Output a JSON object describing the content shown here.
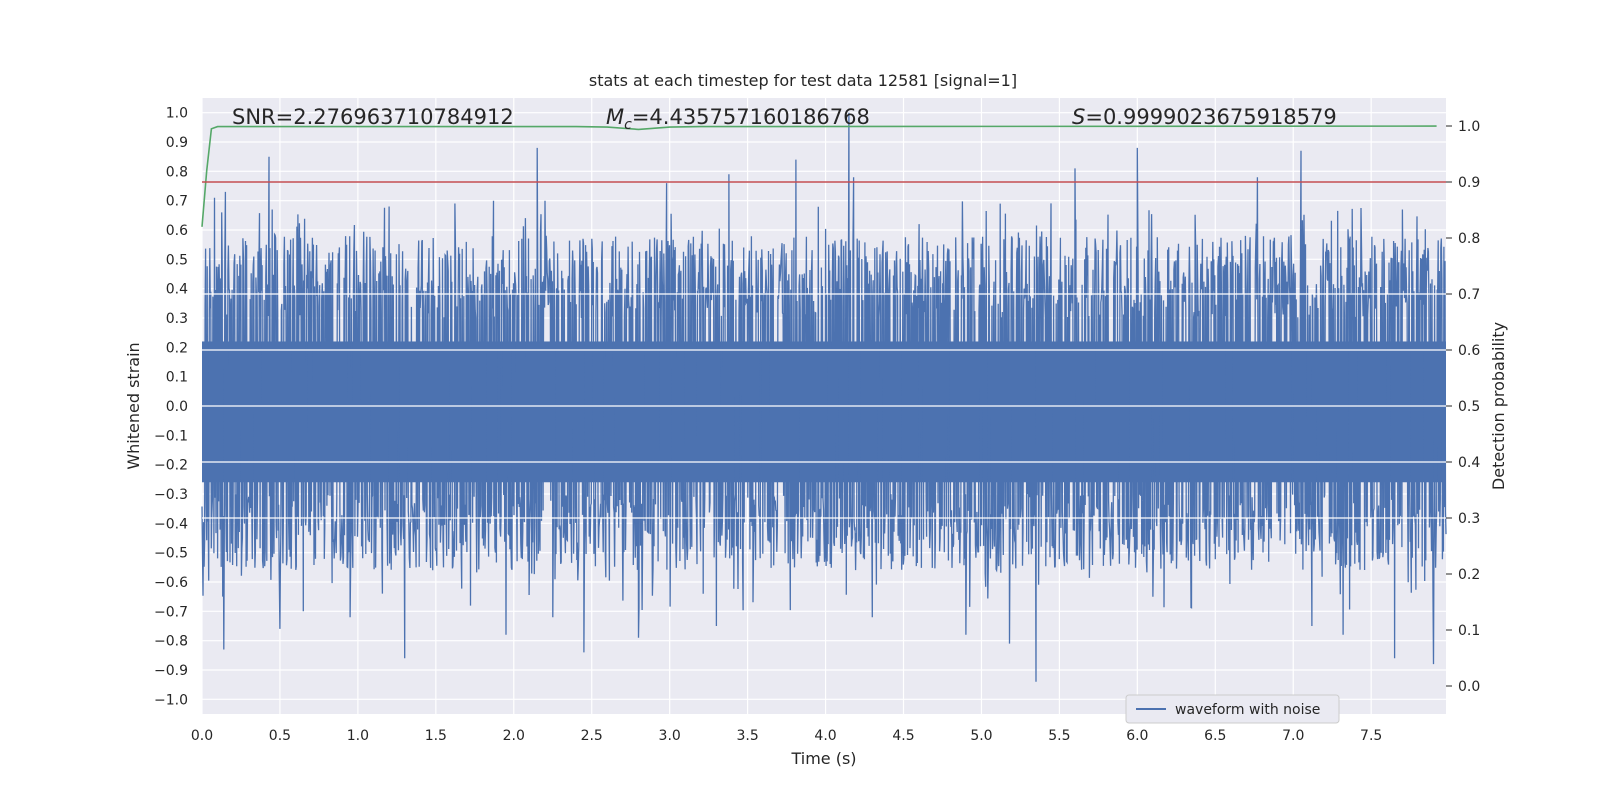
{
  "chart_data": {
    "type": "line",
    "title": "stats at each timestep for test data 12581 [signal=1]",
    "xlabel": "Time (s)",
    "ylabel": "Whitened strain",
    "y2label": "Detection probability",
    "xlim": [
      0.0,
      7.98
    ],
    "ylim": [
      -1.05,
      1.05
    ],
    "y2lim": [
      -0.05,
      1.05
    ],
    "xticks": [
      "0.0",
      "0.5",
      "1.0",
      "1.5",
      "2.0",
      "2.5",
      "3.0",
      "3.5",
      "4.0",
      "4.5",
      "5.0",
      "5.5",
      "6.0",
      "6.5",
      "7.0",
      "7.5"
    ],
    "yticks": [
      "1.0",
      "0.9",
      "0.8",
      "0.7",
      "0.6",
      "0.5",
      "0.4",
      "0.3",
      "0.2",
      "0.1",
      "0.0",
      "−0.1",
      "−0.2",
      "−0.3",
      "−0.4",
      "−0.5",
      "−0.6",
      "−0.7",
      "−0.8",
      "−0.9",
      "−1.0"
    ],
    "y2ticks": [
      "1.0",
      "0.9",
      "0.8",
      "0.7",
      "0.6",
      "0.5",
      "0.4",
      "0.3",
      "0.2",
      "0.1",
      "0.0"
    ],
    "grid": true,
    "legend_position": "lower-right",
    "annotations": {
      "snr": "SNR=2.276963710784912",
      "mc_symbol": "M",
      "mc_sub": "c",
      "mc_value": "=4.435757160186768",
      "s_symbol": "S",
      "s_value": "=0.9999023675918579"
    },
    "series": [
      {
        "name": "waveform with noise",
        "axis": "left",
        "color": "#4c72b0",
        "envelope_sampled": true,
        "upper_peaks": [
          {
            "x": 0.43,
            "y": 0.85
          },
          {
            "x": 0.45,
            "y": 0.67
          },
          {
            "x": 0.15,
            "y": 0.73
          },
          {
            "x": 0.08,
            "y": 0.71
          },
          {
            "x": 1.2,
            "y": 0.68
          },
          {
            "x": 1.87,
            "y": 0.7
          },
          {
            "x": 2.15,
            "y": 0.88
          },
          {
            "x": 2.2,
            "y": 0.7
          },
          {
            "x": 2.98,
            "y": 0.76
          },
          {
            "x": 3.38,
            "y": 0.79
          },
          {
            "x": 3.81,
            "y": 0.84
          },
          {
            "x": 4.15,
            "y": 1.0
          },
          {
            "x": 4.18,
            "y": 0.78
          },
          {
            "x": 4.6,
            "y": 0.62
          },
          {
            "x": 5.12,
            "y": 0.69
          },
          {
            "x": 5.6,
            "y": 0.81
          },
          {
            "x": 6.0,
            "y": 0.88
          },
          {
            "x": 6.77,
            "y": 0.78
          },
          {
            "x": 7.05,
            "y": 0.87
          },
          {
            "x": 7.7,
            "y": 0.67
          }
        ],
        "lower_peaks": [
          {
            "x": 0.14,
            "y": -0.83
          },
          {
            "x": 0.5,
            "y": -0.76
          },
          {
            "x": 0.65,
            "y": -0.7
          },
          {
            "x": 0.95,
            "y": -0.72
          },
          {
            "x": 1.3,
            "y": -0.86
          },
          {
            "x": 1.95,
            "y": -0.78
          },
          {
            "x": 2.25,
            "y": -0.72
          },
          {
            "x": 2.45,
            "y": -0.84
          },
          {
            "x": 2.8,
            "y": -0.79
          },
          {
            "x": 3.3,
            "y": -0.75
          },
          {
            "x": 4.3,
            "y": -0.72
          },
          {
            "x": 4.9,
            "y": -0.78
          },
          {
            "x": 5.18,
            "y": -0.81
          },
          {
            "x": 5.35,
            "y": -0.94
          },
          {
            "x": 6.1,
            "y": -0.65
          },
          {
            "x": 7.12,
            "y": -0.75
          },
          {
            "x": 7.32,
            "y": -0.78
          },
          {
            "x": 7.65,
            "y": -0.86
          },
          {
            "x": 7.9,
            "y": -0.88
          }
        ]
      },
      {
        "name": "",
        "axis": "right",
        "color": "#55a868",
        "points": [
          [
            0.0,
            0.82
          ],
          [
            0.03,
            0.92
          ],
          [
            0.06,
            0.995
          ],
          [
            0.1,
            0.999
          ],
          [
            2.4,
            0.999
          ],
          [
            2.6,
            0.998
          ],
          [
            2.8,
            0.994
          ],
          [
            3.0,
            0.998
          ],
          [
            3.2,
            0.999
          ],
          [
            7.92,
            0.9999
          ]
        ]
      },
      {
        "name": "",
        "axis": "right",
        "color": "#c44e52",
        "points": [
          [
            0.0,
            0.9
          ],
          [
            7.98,
            0.9
          ]
        ]
      }
    ]
  }
}
